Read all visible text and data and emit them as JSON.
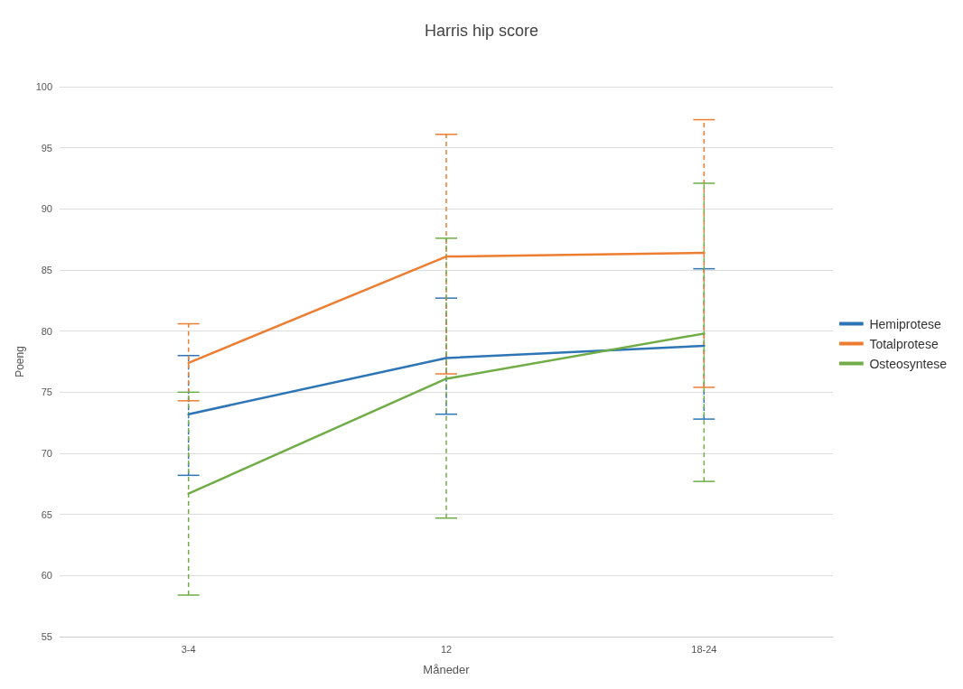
{
  "chart_data": {
    "type": "line",
    "title": "Harris hip score",
    "xlabel": "Måneder",
    "ylabel": "Poeng",
    "categories": [
      "3-4",
      "12",
      "18-24"
    ],
    "series": [
      {
        "name": "Hemiprotese",
        "color": "#2e75b6",
        "values": [
          73.2,
          77.8,
          78.8
        ],
        "errors": [
          [
            68.2,
            78.0
          ],
          [
            73.2,
            82.7
          ],
          [
            72.8,
            85.1
          ]
        ]
      },
      {
        "name": "Totalprotese",
        "color": "#ed7d31",
        "values": [
          77.4,
          86.1,
          86.4
        ],
        "errors": [
          [
            74.3,
            80.6
          ],
          [
            76.5,
            96.1
          ],
          [
            75.4,
            97.3
          ]
        ]
      },
      {
        "name": "Osteosyntese",
        "color": "#70ad47",
        "values": [
          66.7,
          76.1,
          79.8
        ],
        "errors": [
          [
            58.4,
            75.0
          ],
          [
            64.7,
            87.6
          ],
          [
            67.7,
            92.1
          ]
        ]
      }
    ],
    "ylim": [
      55,
      100
    ],
    "yticks": [
      55,
      60,
      65,
      70,
      75,
      80,
      85,
      90,
      95,
      100
    ],
    "grid": "y",
    "legend": "right",
    "marker": "none",
    "line_style": "solid"
  }
}
